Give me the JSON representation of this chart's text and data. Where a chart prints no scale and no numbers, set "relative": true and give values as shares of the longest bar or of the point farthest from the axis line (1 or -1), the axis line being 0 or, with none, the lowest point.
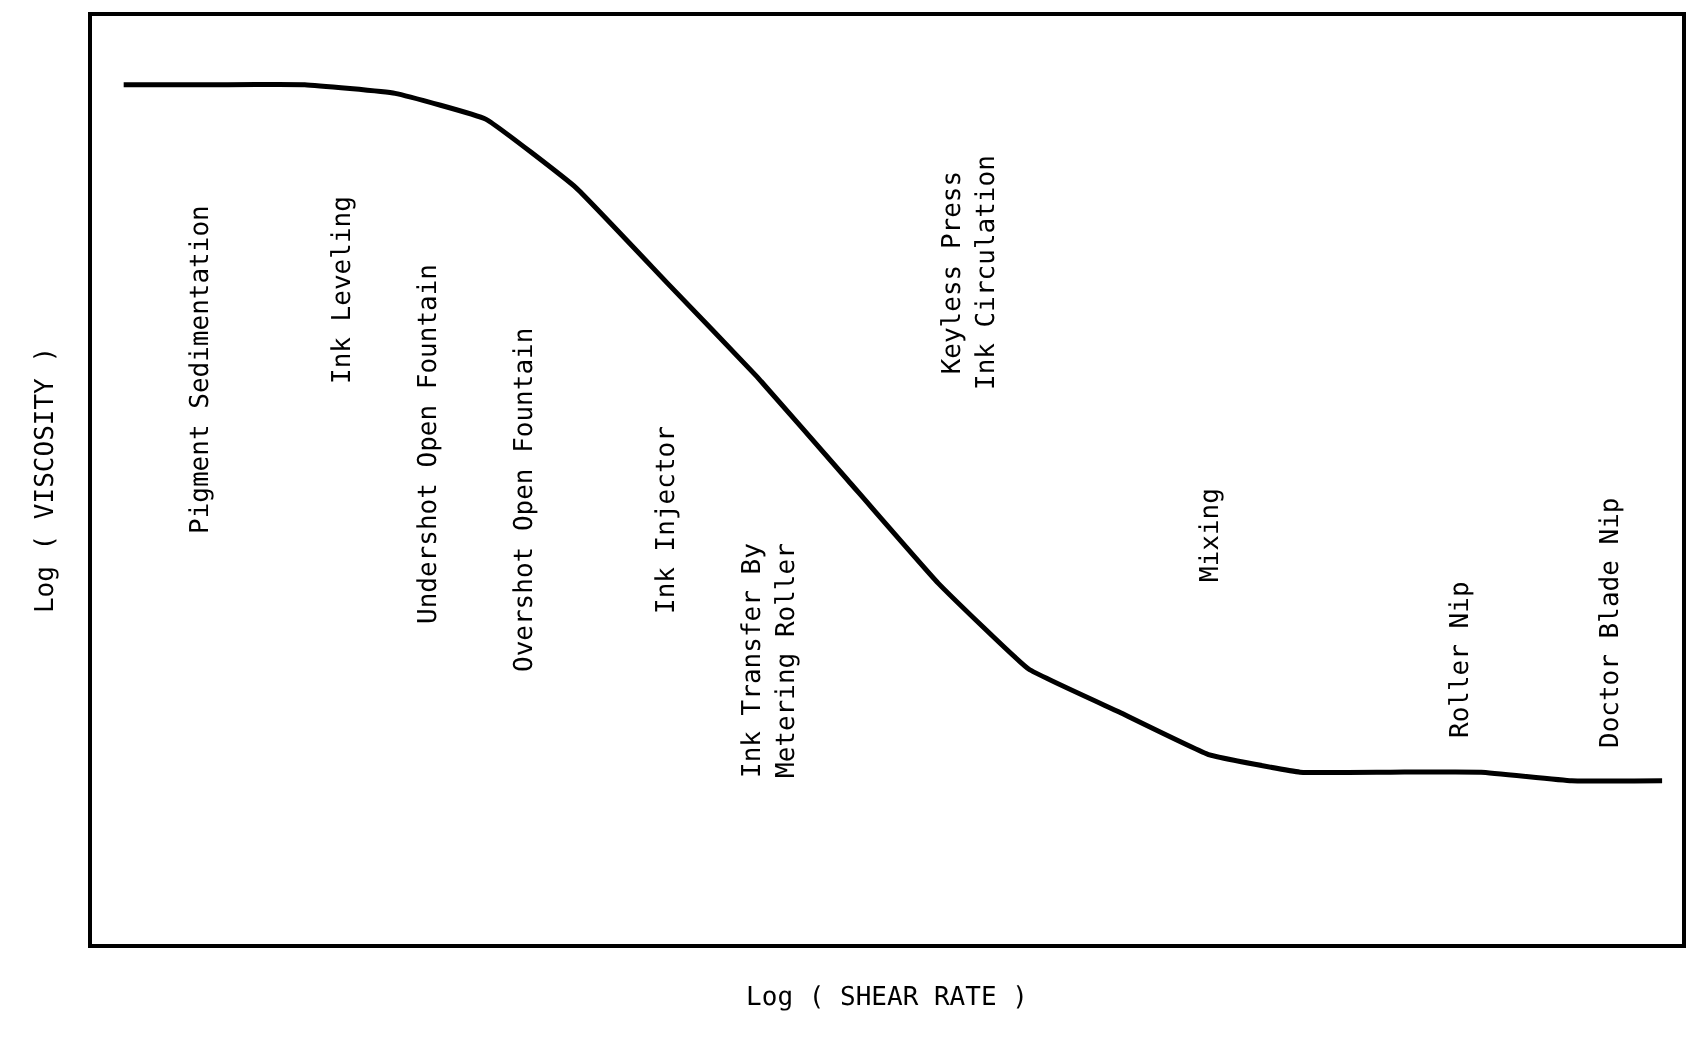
{
  "chart_data": {
    "type": "line",
    "relative": true,
    "xlabel": "Log ( SHEAR RATE )",
    "ylabel": "Log ( VISCOSITY )",
    "categories": [
      null,
      null,
      null,
      null,
      null,
      null,
      null,
      null,
      null,
      null,
      null,
      null,
      null,
      null,
      null,
      null,
      null,
      null
    ],
    "series": [
      {
        "color": "#000000",
        "values": [
          1,
          1,
          1,
          0.99,
          0.96,
          0.88,
          0.77,
          0.66,
          0.54,
          0.42,
          0.32,
          0.27,
          0.22,
          0.2,
          0.2,
          0.2,
          0.19,
          0.19
        ]
      }
    ],
    "annotations": [
      "Pigment Sedimentation",
      "Ink Leveling",
      "Undershot Open Fountain",
      "Overshot Open Fountain",
      "Ink Injector",
      "Ink Transfer By\nMetering Roller",
      "Keyless Press\nInk Circulation",
      "Mixing",
      "Roller Nip",
      "Doctor Blade Nip"
    ],
    "grid": false,
    "marker": "none",
    "line_style": "solid"
  }
}
